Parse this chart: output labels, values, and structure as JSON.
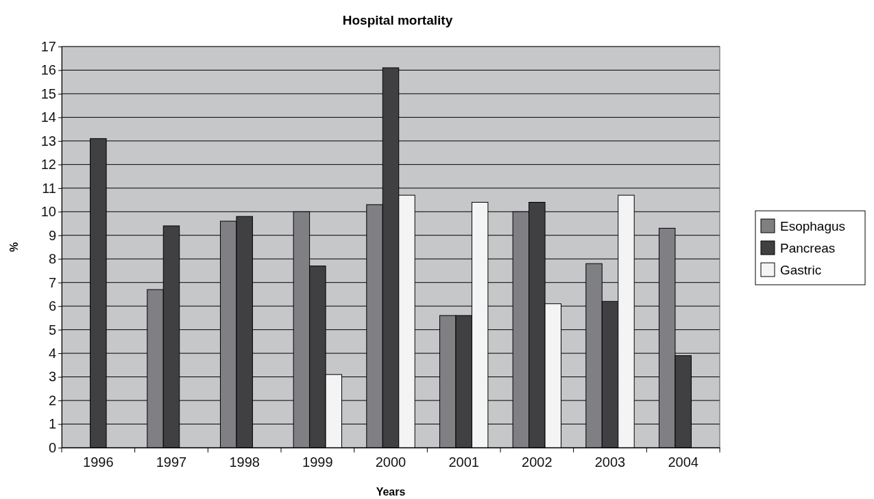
{
  "chart_data": {
    "type": "bar",
    "title": "Hospital mortality",
    "xlabel": "Years",
    "ylabel": "%",
    "categories": [
      "1996",
      "1997",
      "1998",
      "1999",
      "2000",
      "2001",
      "2002",
      "2003",
      "2004"
    ],
    "series": [
      {
        "name": "Esophagus",
        "color": "#7f7f84",
        "values": [
          null,
          6.7,
          9.6,
          10.0,
          10.3,
          5.6,
          10.0,
          7.8,
          9.3
        ]
      },
      {
        "name": "Pancreas",
        "color": "#404042",
        "values": [
          13.1,
          9.4,
          9.8,
          7.7,
          16.1,
          5.6,
          10.4,
          6.2,
          3.9
        ]
      },
      {
        "name": "Gastric",
        "color": "#f4f4f4",
        "values": [
          null,
          null,
          null,
          3.1,
          10.7,
          10.4,
          6.1,
          10.7,
          null
        ]
      }
    ],
    "ylim": [
      0,
      17
    ],
    "yticks": [
      0,
      1,
      2,
      3,
      4,
      5,
      6,
      7,
      8,
      9,
      10,
      11,
      12,
      13,
      14,
      15,
      16,
      17
    ],
    "grid": "y",
    "legend": "right"
  }
}
